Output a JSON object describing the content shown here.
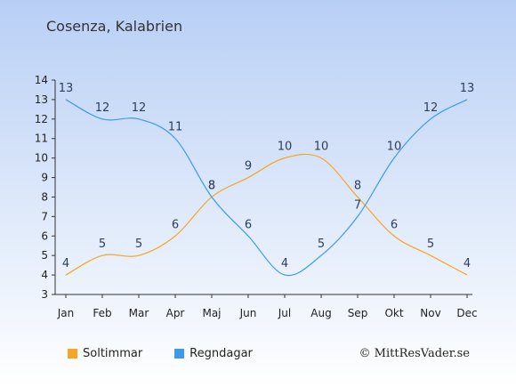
{
  "title": "Cosenza, Kalabrien",
  "credit": "© MittResVader.se",
  "chart_data": {
    "type": "line",
    "categories": [
      "Jan",
      "Feb",
      "Mar",
      "Apr",
      "Maj",
      "Jun",
      "Jul",
      "Aug",
      "Sep",
      "Okt",
      "Nov",
      "Dec"
    ],
    "ylim": [
      3,
      14
    ],
    "yticks": [
      3,
      4,
      5,
      6,
      7,
      8,
      9,
      10,
      11,
      12,
      13,
      14
    ],
    "grid": false,
    "legend": "bottom-left",
    "series": [
      {
        "name": "Soltimmar",
        "color": "#f5a623",
        "values": [
          4,
          5,
          5,
          6,
          8,
          9,
          10,
          10,
          8,
          6,
          5,
          4
        ]
      },
      {
        "name": "Regndagar",
        "color": "#3b9be8",
        "values": [
          13,
          12,
          12,
          11,
          8,
          6,
          4,
          5,
          7,
          10,
          12,
          13
        ]
      }
    ]
  }
}
